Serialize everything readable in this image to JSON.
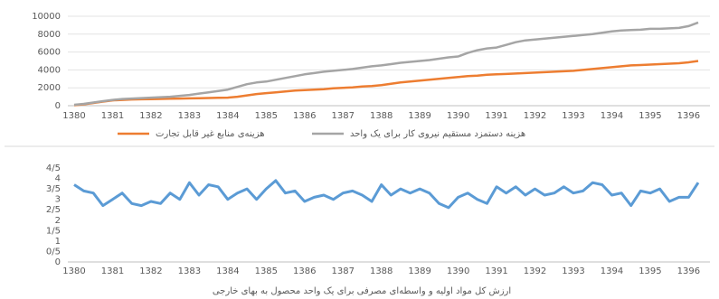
{
  "chart_data": [
    {
      "type": "line",
      "categories": [
        "1380",
        null,
        null,
        null,
        "1381",
        null,
        null,
        null,
        "1382",
        null,
        null,
        null,
        "1383",
        null,
        null,
        null,
        "1384",
        null,
        null,
        null,
        "1385",
        null,
        null,
        null,
        "1386",
        null,
        null,
        null,
        "1387",
        null,
        null,
        null,
        "1388",
        null,
        null,
        null,
        "1389",
        null,
        null,
        null,
        "1390",
        null,
        null,
        null,
        "1391",
        null,
        null,
        null,
        "1392",
        null,
        null,
        null,
        "1393",
        null,
        null,
        null,
        "1394",
        null,
        null,
        null,
        "1395",
        null,
        null,
        null,
        "1396",
        null
      ],
      "series": [
        {
          "name": "هزینه‌ی منابع غیر قابل تجارت",
          "color": "#ed7d31",
          "values": [
            50,
            150,
            300,
            450,
            600,
            650,
            700,
            720,
            740,
            760,
            780,
            800,
            820,
            840,
            860,
            880,
            900,
            1000,
            1150,
            1300,
            1400,
            1500,
            1600,
            1700,
            1750,
            1800,
            1850,
            1950,
            2000,
            2050,
            2150,
            2200,
            2300,
            2450,
            2600,
            2700,
            2800,
            2900,
            3000,
            3100,
            3200,
            3300,
            3350,
            3450,
            3500,
            3550,
            3600,
            3650,
            3700,
            3750,
            3800,
            3850,
            3900,
            4000,
            4100,
            4200,
            4300,
            4400,
            4500,
            4550,
            4600,
            4650,
            4700,
            4750,
            4850,
            5000
          ]
        },
        {
          "name": "هزینه دستمزد مستقیم نیروی کار برای یک واحد",
          "color": "#a5a5a5",
          "values": [
            100,
            200,
            350,
            500,
            650,
            750,
            800,
            850,
            900,
            950,
            1000,
            1100,
            1200,
            1350,
            1500,
            1650,
            1800,
            2100,
            2400,
            2600,
            2700,
            2900,
            3100,
            3300,
            3500,
            3650,
            3800,
            3900,
            4000,
            4100,
            4250,
            4400,
            4500,
            4650,
            4800,
            4900,
            5000,
            5100,
            5250,
            5400,
            5500,
            5900,
            6200,
            6400,
            6500,
            6800,
            7100,
            7300,
            7400,
            7500,
            7600,
            7700,
            7800,
            7900,
            8000,
            8150,
            8300,
            8400,
            8450,
            8500,
            8600,
            8600,
            8650,
            8700,
            8900,
            9300
          ]
        }
      ],
      "ylim": [
        0,
        10000
      ],
      "yticks": [
        0,
        2000,
        4000,
        6000,
        8000,
        10000
      ],
      "grid": true,
      "legend": "bottom"
    },
    {
      "type": "line",
      "title": "ارزش کل مواد اولیه و واسطه‌ای مصرفی برای یک واحد محصول به بهای خارجی",
      "categories": [
        "1380",
        null,
        null,
        null,
        "1381",
        null,
        null,
        null,
        "1382",
        null,
        null,
        null,
        "1383",
        null,
        null,
        null,
        "1384",
        null,
        null,
        null,
        "1385",
        null,
        null,
        null,
        "1386",
        null,
        null,
        null,
        "1387",
        null,
        null,
        null,
        "1388",
        null,
        null,
        null,
        "1389",
        null,
        null,
        null,
        "1390",
        null,
        null,
        null,
        "1391",
        null,
        null,
        null,
        "1392",
        null,
        null,
        null,
        "1393",
        null,
        null,
        null,
        "1394",
        null,
        null,
        null,
        "1395",
        null,
        null,
        null,
        "1396",
        null
      ],
      "series": [
        {
          "color": "#5b9bd5",
          "values": [
            3.7,
            3.4,
            3.3,
            2.7,
            3.0,
            3.3,
            2.8,
            2.7,
            2.9,
            2.8,
            3.3,
            3.0,
            3.8,
            3.2,
            3.7,
            3.6,
            3.0,
            3.3,
            3.5,
            3.0,
            3.5,
            3.9,
            3.3,
            3.4,
            2.9,
            3.1,
            3.2,
            3.0,
            3.3,
            3.4,
            3.2,
            2.9,
            3.7,
            3.2,
            3.5,
            3.3,
            3.5,
            3.3,
            2.8,
            2.6,
            3.1,
            3.3,
            3.0,
            2.8,
            3.6,
            3.3,
            3.6,
            3.2,
            3.5,
            3.2,
            3.3,
            3.6,
            3.3,
            3.4,
            3.8,
            3.7,
            3.2,
            3.3,
            2.7,
            3.4,
            3.3,
            3.5,
            2.9,
            3.1,
            3.1,
            3.8
          ]
        }
      ],
      "ylim": [
        0,
        4.5
      ],
      "yticks": [
        0,
        {
          "value": 0.5,
          "label": "0/5"
        },
        1,
        {
          "value": 1.5,
          "label": "1/5"
        },
        2,
        {
          "value": 2.5,
          "label": "2/5"
        },
        3,
        {
          "value": 3.5,
          "label": "3/5"
        },
        4,
        {
          "value": 4.5,
          "label": "4/5"
        }
      ],
      "grid": false
    }
  ]
}
